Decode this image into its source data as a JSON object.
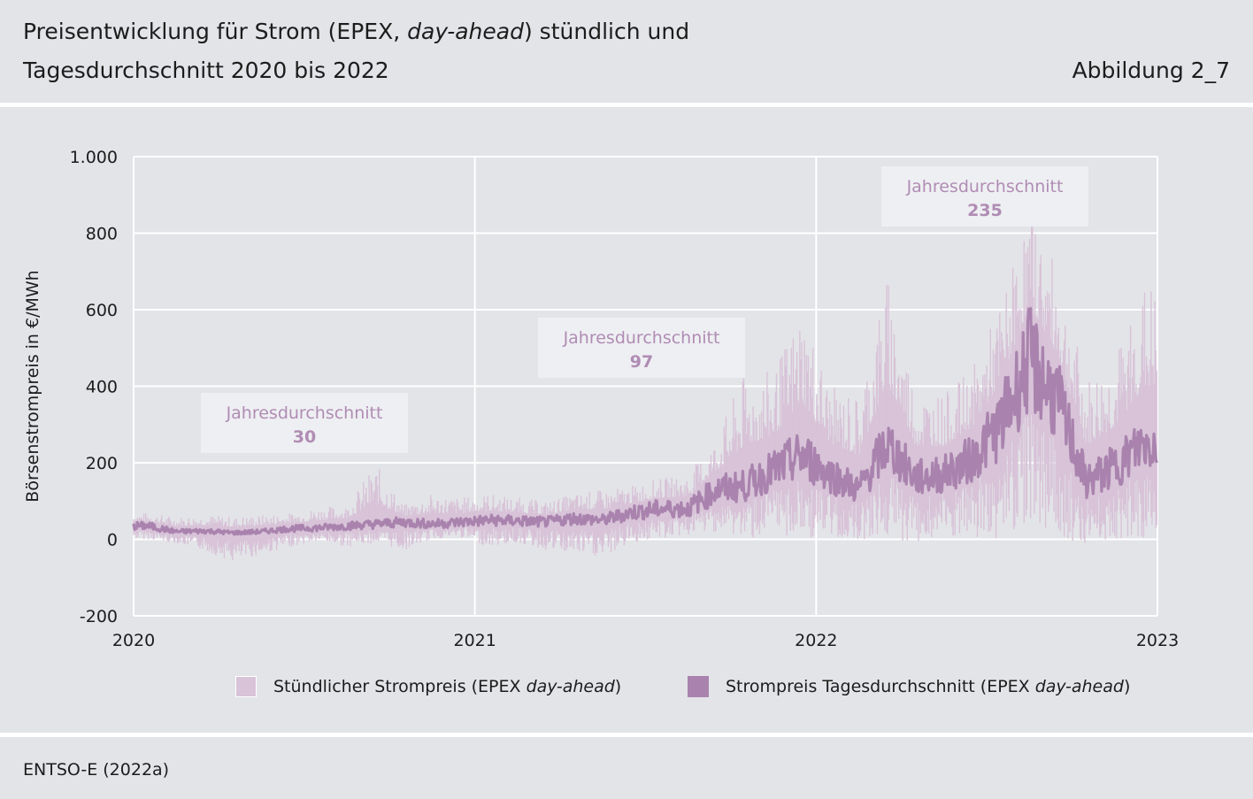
{
  "header": {
    "title_line1_pre": "Preisentwicklung für Strom (EPEX, ",
    "title_line1_em": "day-ahead",
    "title_line1_post": ") stündlich und",
    "title_line2": "Tagesdurchschnitt 2020 bis 2022",
    "figure_label": "Abbildung 2_7"
  },
  "source": "ENTSO-E (2022a)",
  "legend": {
    "hourly_pre": "Stündlicher Strompreis (EPEX ",
    "hourly_em": "day-ahead",
    "hourly_post": ")",
    "daily_pre": "Strompreis Tagesdurchschnitt (EPEX ",
    "daily_em": "day-ahead",
    "daily_post": ")"
  },
  "colors": {
    "hourly": "#d8c3d8",
    "daily": "#a983ae",
    "annotation_text": "#b08cb4",
    "annotation_box": "#eeeff2",
    "grid": "#ffffff",
    "background": "#e3e4e8"
  },
  "chart_data": {
    "type": "line",
    "ylabel": "Börsenstrompreis in €/MWh",
    "ylim": [
      -200,
      1000
    ],
    "y_ticks": [
      -200,
      0,
      200,
      400,
      600,
      800,
      1000
    ],
    "y_tick_labels": [
      "-200",
      "0",
      "200",
      "400",
      "600",
      "800",
      "1.000"
    ],
    "xlim": [
      2020,
      2023
    ],
    "x_ticks": [
      2020,
      2021,
      2022,
      2023
    ],
    "x_tick_labels": [
      "2020",
      "2021",
      "2022",
      "2023"
    ],
    "grid": true,
    "legend_position": "bottom",
    "annotations": [
      {
        "label": "Jahresdurchschnitt",
        "value": "30",
        "year": 2020
      },
      {
        "label": "Jahresdurchschnitt",
        "value": "97",
        "year": 2021
      },
      {
        "label": "Jahresdurchschnitt",
        "value": "235",
        "year": 2022
      }
    ],
    "series": [
      {
        "name": "Stündlicher Strompreis (EPEX day-ahead) – Tagesminimum",
        "x": [
          "2020-01",
          "2020-02",
          "2020-03",
          "2020-04",
          "2020-05",
          "2020-06",
          "2020-07",
          "2020-08",
          "2020-09",
          "2020-10",
          "2020-11",
          "2020-12",
          "2021-01",
          "2021-02",
          "2021-03",
          "2021-04",
          "2021-05",
          "2021-06",
          "2021-07",
          "2021-08",
          "2021-09",
          "2021-10",
          "2021-11",
          "2021-12",
          "2022-01",
          "2022-02",
          "2022-03",
          "2022-04",
          "2022-05",
          "2022-06",
          "2022-07",
          "2022-08",
          "2022-09",
          "2022-10",
          "2022-11",
          "2022-12"
        ],
        "values": [
          0,
          -10,
          -30,
          -60,
          -40,
          -20,
          -5,
          -20,
          -10,
          -30,
          0,
          5,
          -20,
          -10,
          -30,
          -40,
          -50,
          -10,
          0,
          10,
          20,
          0,
          10,
          0,
          0,
          0,
          0,
          -10,
          0,
          -10,
          0,
          50,
          0,
          -10,
          0,
          0
        ]
      },
      {
        "name": "Stündlicher Strompreis (EPEX day-ahead) – Tagesmaximum",
        "x": [
          "2020-01",
          "2020-02",
          "2020-03",
          "2020-04",
          "2020-05",
          "2020-06",
          "2020-07",
          "2020-08",
          "2020-09",
          "2020-10",
          "2020-11",
          "2020-12",
          "2021-01",
          "2021-02",
          "2021-03",
          "2021-04",
          "2021-05",
          "2021-06",
          "2021-07",
          "2021-08",
          "2021-09",
          "2021-10",
          "2021-11",
          "2021-12",
          "2022-01",
          "2022-02",
          "2022-03",
          "2022-04",
          "2022-05",
          "2022-06",
          "2022-07",
          "2022-08",
          "2022-09",
          "2022-10",
          "2022-11",
          "2022-12"
        ],
        "values": [
          70,
          60,
          65,
          60,
          65,
          70,
          85,
          90,
          200,
          90,
          120,
          110,
          120,
          110,
          100,
          120,
          130,
          140,
          160,
          170,
          270,
          440,
          440,
          620,
          400,
          380,
          700,
          400,
          380,
          450,
          620,
          870,
          700,
          420,
          480,
          670
        ]
      },
      {
        "name": "Strompreis Tagesdurchschnitt (EPEX day-ahead)",
        "x": [
          "2020-01",
          "2020-02",
          "2020-03",
          "2020-04",
          "2020-05",
          "2020-06",
          "2020-07",
          "2020-08",
          "2020-09",
          "2020-10",
          "2020-11",
          "2020-12",
          "2021-01",
          "2021-02",
          "2021-03",
          "2021-04",
          "2021-05",
          "2021-06",
          "2021-07",
          "2021-08",
          "2021-09",
          "2021-10",
          "2021-11",
          "2021-12",
          "2022-01",
          "2022-02",
          "2022-03",
          "2022-04",
          "2022-05",
          "2022-06",
          "2022-07",
          "2022-08",
          "2022-09",
          "2022-10",
          "2022-11",
          "2022-12"
        ],
        "values": [
          35,
          20,
          22,
          17,
          20,
          28,
          30,
          35,
          40,
          45,
          40,
          45,
          50,
          48,
          45,
          55,
          50,
          70,
          80,
          80,
          130,
          140,
          180,
          220,
          170,
          130,
          250,
          160,
          170,
          210,
          300,
          470,
          360,
          150,
          190,
          250
        ]
      }
    ]
  }
}
